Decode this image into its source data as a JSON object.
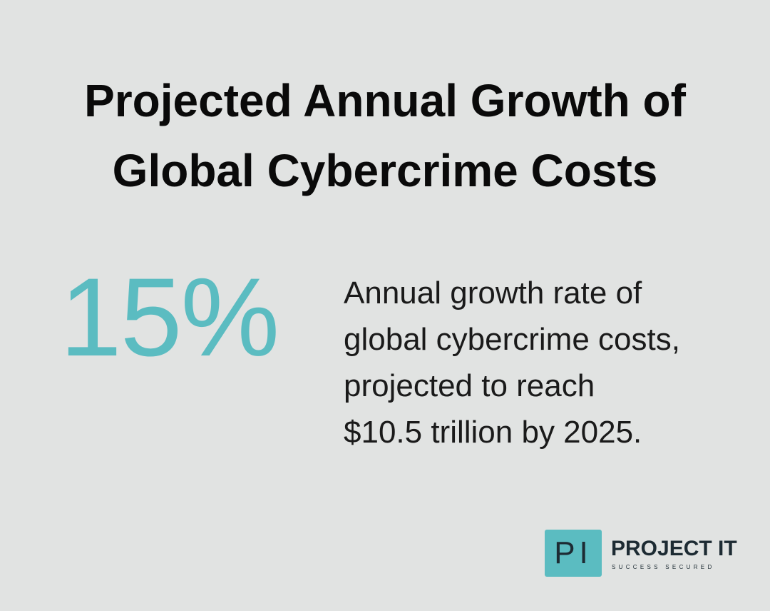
{
  "header": {
    "title_lines": [
      "Projected Annual Growth of",
      "Global Cybercrime Costs"
    ]
  },
  "stat": {
    "value": "15%",
    "description_lines": [
      "Annual growth rate of",
      "global cybercrime costs,",
      "projected to reach",
      "$10.5 trillion by 2025."
    ]
  },
  "logo": {
    "mark": "PI",
    "name": "PROJECT IT",
    "tagline": "SUCCESS SECURED"
  }
}
